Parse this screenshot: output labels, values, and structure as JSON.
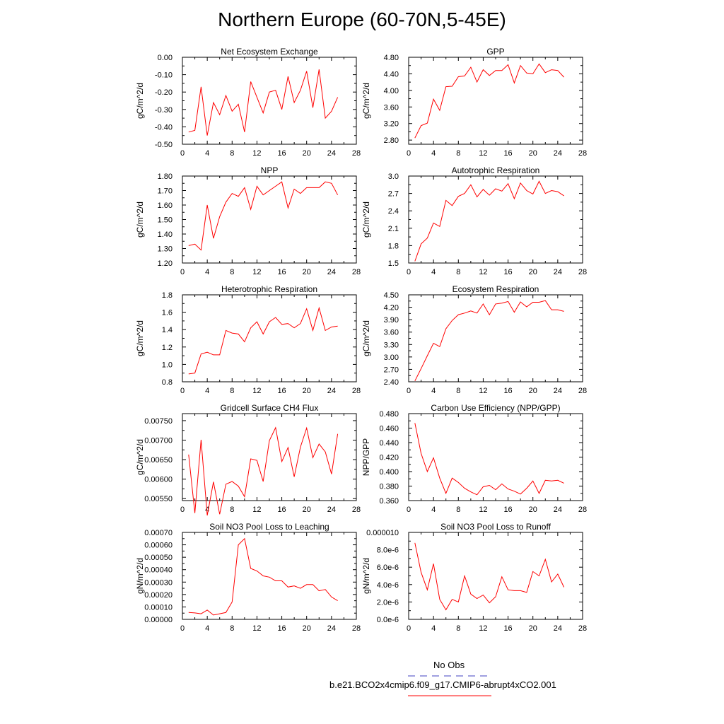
{
  "title": "Northern Europe (60-70N,5-45E)",
  "colors": {
    "series": "#ff0000",
    "obs": "#4040c0",
    "axis": "#000000"
  },
  "legend": {
    "obs_label": "No Obs",
    "case_label": "b.e21.BCO2x4cmip6.f09_g17.CMIP6-abrupt4xCO2.001"
  },
  "chart_data": [
    {
      "type": "line",
      "title": "Net Ecosystem Exchange",
      "ylabel": "gC/m^2/d",
      "xlim": [
        0,
        28
      ],
      "xticks": [
        0,
        4,
        8,
        12,
        16,
        20,
        24,
        28
      ],
      "ylim": [
        -0.5,
        0.0
      ],
      "yticks": [
        -0.5,
        -0.4,
        -0.3,
        -0.2,
        -0.1,
        0.0
      ],
      "yticklabels": [
        "-0.50",
        "-0.40",
        "-0.30",
        "-0.20",
        "-0.10",
        "0.00"
      ],
      "x": [
        1,
        2,
        3,
        4,
        5,
        6,
        7,
        8,
        9,
        10,
        11,
        12,
        13,
        14,
        15,
        16,
        17,
        18,
        19,
        20,
        21,
        22,
        23,
        24,
        25
      ],
      "y": [
        -0.43,
        -0.42,
        -0.17,
        -0.45,
        -0.26,
        -0.33,
        -0.22,
        -0.31,
        -0.27,
        -0.43,
        -0.14,
        -0.23,
        -0.32,
        -0.2,
        -0.19,
        -0.3,
        -0.11,
        -0.26,
        -0.19,
        -0.08,
        -0.29,
        -0.07,
        -0.35,
        -0.31,
        -0.23
      ]
    },
    {
      "type": "line",
      "title": "GPP",
      "ylabel": "gC/m^2/d",
      "xlim": [
        0,
        28
      ],
      "xticks": [
        0,
        4,
        8,
        12,
        16,
        20,
        24,
        28
      ],
      "ylim": [
        2.7,
        4.8
      ],
      "yticks": [
        2.8,
        3.2,
        3.6,
        4.0,
        4.4,
        4.8
      ],
      "yticklabels": [
        "2.80",
        "3.20",
        "3.60",
        "4.00",
        "4.40",
        "4.80"
      ],
      "x": [
        1,
        2,
        3,
        4,
        5,
        6,
        7,
        8,
        9,
        10,
        11,
        12,
        13,
        14,
        15,
        16,
        17,
        18,
        19,
        20,
        21,
        22,
        23,
        24,
        25
      ],
      "y": [
        2.85,
        3.15,
        3.21,
        3.79,
        3.52,
        4.09,
        4.1,
        4.33,
        4.35,
        4.56,
        4.2,
        4.5,
        4.36,
        4.48,
        4.48,
        4.62,
        4.18,
        4.6,
        4.42,
        4.4,
        4.64,
        4.43,
        4.5,
        4.48,
        4.32
      ]
    },
    {
      "type": "line",
      "title": "NPP",
      "ylabel": "gC/m^2/d",
      "xlim": [
        0,
        28
      ],
      "xticks": [
        0,
        4,
        8,
        12,
        16,
        20,
        24,
        28
      ],
      "ylim": [
        1.2,
        1.8
      ],
      "yticks": [
        1.2,
        1.3,
        1.4,
        1.5,
        1.6,
        1.7,
        1.8
      ],
      "yticklabels": [
        "1.20",
        "1.30",
        "1.40",
        "1.50",
        "1.60",
        "1.70",
        "1.80"
      ],
      "x": [
        1,
        2,
        3,
        4,
        5,
        6,
        7,
        8,
        9,
        10,
        11,
        12,
        13,
        14,
        15,
        16,
        17,
        18,
        19,
        20,
        21,
        22,
        23,
        24,
        25
      ],
      "y": [
        1.32,
        1.33,
        1.29,
        1.6,
        1.37,
        1.52,
        1.62,
        1.68,
        1.66,
        1.72,
        1.57,
        1.73,
        1.67,
        1.7,
        1.73,
        1.76,
        1.58,
        1.71,
        1.68,
        1.72,
        1.72,
        1.72,
        1.76,
        1.75,
        1.67
      ]
    },
    {
      "type": "line",
      "title": "Autotrophic Respiration",
      "ylabel": "gC/m^2/d",
      "xlim": [
        0,
        28
      ],
      "xticks": [
        0,
        4,
        8,
        12,
        16,
        20,
        24,
        28
      ],
      "ylim": [
        1.5,
        3.0
      ],
      "yticks": [
        1.5,
        1.8,
        2.1,
        2.4,
        2.7,
        3.0
      ],
      "yticklabels": [
        "1.5",
        "1.8",
        "2.1",
        "2.4",
        "2.7",
        "3.0"
      ],
      "x": [
        1,
        2,
        3,
        4,
        5,
        6,
        7,
        8,
        9,
        10,
        11,
        12,
        13,
        14,
        15,
        16,
        17,
        18,
        19,
        20,
        21,
        22,
        23,
        24,
        25
      ],
      "y": [
        1.53,
        1.83,
        1.93,
        2.19,
        2.13,
        2.58,
        2.49,
        2.65,
        2.7,
        2.85,
        2.64,
        2.77,
        2.67,
        2.78,
        2.74,
        2.87,
        2.61,
        2.88,
        2.75,
        2.69,
        2.91,
        2.7,
        2.75,
        2.73,
        2.66
      ]
    },
    {
      "type": "line",
      "title": "Heterotrophic Respiration",
      "ylabel": "gC/m^2/d",
      "xlim": [
        0,
        28
      ],
      "xticks": [
        0,
        4,
        8,
        12,
        16,
        20,
        24,
        28
      ],
      "ylim": [
        0.8,
        1.8
      ],
      "yticks": [
        0.8,
        1.0,
        1.2,
        1.4,
        1.6,
        1.8
      ],
      "yticklabels": [
        "0.8",
        "1.0",
        "1.2",
        "1.4",
        "1.6",
        "1.8"
      ],
      "x": [
        1,
        2,
        3,
        4,
        5,
        6,
        7,
        8,
        9,
        10,
        11,
        12,
        13,
        14,
        15,
        16,
        17,
        18,
        19,
        20,
        21,
        22,
        23,
        24,
        25
      ],
      "y": [
        0.89,
        0.9,
        1.12,
        1.14,
        1.11,
        1.11,
        1.39,
        1.36,
        1.35,
        1.26,
        1.42,
        1.49,
        1.35,
        1.49,
        1.54,
        1.46,
        1.47,
        1.42,
        1.47,
        1.64,
        1.39,
        1.65,
        1.39,
        1.43,
        1.44
      ]
    },
    {
      "type": "line",
      "title": "Ecosystem Respiration",
      "ylabel": "gC/m^2/d",
      "xlim": [
        0,
        28
      ],
      "xticks": [
        0,
        4,
        8,
        12,
        16,
        20,
        24,
        28
      ],
      "ylim": [
        2.4,
        4.5
      ],
      "yticks": [
        2.4,
        2.7,
        3.0,
        3.3,
        3.6,
        3.9,
        4.2,
        4.5
      ],
      "yticklabels": [
        "2.40",
        "2.70",
        "3.00",
        "3.30",
        "3.60",
        "3.90",
        "4.20",
        "4.50"
      ],
      "x": [
        1,
        2,
        3,
        4,
        5,
        6,
        7,
        8,
        9,
        10,
        11,
        12,
        13,
        14,
        15,
        16,
        17,
        18,
        19,
        20,
        21,
        22,
        23,
        24,
        25
      ],
      "y": [
        2.42,
        2.72,
        3.03,
        3.33,
        3.25,
        3.68,
        3.88,
        4.02,
        4.06,
        4.11,
        4.06,
        4.28,
        4.02,
        4.28,
        4.3,
        4.34,
        4.08,
        4.33,
        4.21,
        4.32,
        4.32,
        4.36,
        4.14,
        4.14,
        4.1
      ]
    },
    {
      "type": "line",
      "title": "Gridcell Surface CH4 Flux",
      "ylabel": "gC/m^2/d",
      "xlim": [
        0,
        28
      ],
      "xticks": [
        0,
        4,
        8,
        12,
        16,
        20,
        24,
        28
      ],
      "ylim": [
        0.00545,
        0.00768
      ],
      "yticks": [
        0.0055,
        0.006,
        0.0065,
        0.007,
        0.0075
      ],
      "yticklabels": [
        "0.00550",
        "0.00600",
        "0.00650",
        "0.00700",
        "0.00750"
      ],
      "x": [
        1,
        2,
        3,
        4,
        5,
        6,
        7,
        8,
        9,
        10,
        11,
        12,
        13,
        14,
        15,
        16,
        17,
        18,
        19,
        20,
        21,
        22,
        23,
        24,
        25
      ],
      "y": [
        0.00663,
        0.00513,
        0.00701,
        0.00507,
        0.00593,
        0.0051,
        0.00587,
        0.00594,
        0.00582,
        0.00555,
        0.00652,
        0.00648,
        0.00594,
        0.00699,
        0.00732,
        0.00645,
        0.00681,
        0.00606,
        0.00682,
        0.00731,
        0.00655,
        0.0069,
        0.0067,
        0.00613,
        0.00716
      ]
    },
    {
      "type": "line",
      "title": "Carbon Use Efficiency (NPP/GPP)",
      "ylabel": "NPP/GPP",
      "xlim": [
        0,
        28
      ],
      "xticks": [
        0,
        4,
        8,
        12,
        16,
        20,
        24,
        28
      ],
      "ylim": [
        0.36,
        0.48
      ],
      "yticks": [
        0.36,
        0.38,
        0.4,
        0.42,
        0.44,
        0.46,
        0.48
      ],
      "yticklabels": [
        "0.360",
        "0.380",
        "0.400",
        "0.420",
        "0.440",
        "0.460",
        "0.480"
      ],
      "x": [
        1,
        2,
        3,
        4,
        5,
        6,
        7,
        8,
        9,
        10,
        11,
        12,
        13,
        14,
        15,
        16,
        17,
        18,
        19,
        20,
        21,
        22,
        23,
        24,
        25
      ],
      "y": [
        0.467,
        0.425,
        0.4,
        0.419,
        0.391,
        0.37,
        0.391,
        0.385,
        0.377,
        0.372,
        0.368,
        0.379,
        0.381,
        0.375,
        0.383,
        0.376,
        0.373,
        0.369,
        0.377,
        0.387,
        0.37,
        0.388,
        0.387,
        0.388,
        0.384
      ]
    },
    {
      "type": "line",
      "title": "Soil NO3 Pool Loss to Leaching",
      "ylabel": "gN/m^2/d",
      "xlim": [
        0,
        28
      ],
      "xticks": [
        0,
        4,
        8,
        12,
        16,
        20,
        24,
        28
      ],
      "ylim": [
        0.0,
        0.0007
      ],
      "yticks": [
        0,
        0.0001,
        0.0002,
        0.0003,
        0.0004,
        0.0005,
        0.0006,
        0.0007
      ],
      "yticklabels": [
        "0.00000",
        "0.00010",
        "0.00020",
        "0.00030",
        "0.00040",
        "0.00050",
        "0.00060",
        "0.00070"
      ],
      "x": [
        1,
        2,
        3,
        4,
        5,
        6,
        7,
        8,
        9,
        10,
        11,
        12,
        13,
        14,
        15,
        16,
        17,
        18,
        19,
        20,
        21,
        22,
        23,
        24,
        25
      ],
      "y": [
        5.5e-05,
        5.2e-05,
        4.5e-05,
        7.5e-05,
        3.5e-05,
        4.5e-05,
        5.5e-05,
        0.00014,
        0.0006,
        0.00065,
        0.00041,
        0.00039,
        0.00035,
        0.00034,
        0.00031,
        0.00031,
        0.00026,
        0.00027,
        0.00025,
        0.00028,
        0.00028,
        0.00023,
        0.00024,
        0.00018,
        0.00015
      ]
    },
    {
      "type": "line",
      "title": "Soil NO3 Pool Loss to Runoff",
      "ylabel": "gN/m^2/d",
      "xlim": [
        0,
        28
      ],
      "xticks": [
        0,
        4,
        8,
        12,
        16,
        20,
        24,
        28
      ],
      "ylim": [
        0.0,
        1e-05
      ],
      "yticks": [
        0,
        2e-06,
        4e-06,
        6e-06,
        8e-06,
        1e-05
      ],
      "yticklabels": [
        "0.0e-6",
        "2.0e-6",
        "4.0e-6",
        "6.0e-6",
        "8.0e-6",
        "0.000010"
      ],
      "x": [
        1,
        2,
        3,
        4,
        5,
        6,
        7,
        8,
        9,
        10,
        11,
        12,
        13,
        14,
        15,
        16,
        17,
        18,
        19,
        20,
        21,
        22,
        23,
        24,
        25
      ],
      "y": [
        8.8e-06,
        5.4e-06,
        3.4e-06,
        6.4e-06,
        2.3e-06,
        1.1e-06,
        2.3e-06,
        2e-06,
        5e-06,
        2.9e-06,
        2.4e-06,
        2.8e-06,
        1.9e-06,
        2.6e-06,
        4.9e-06,
        3.4e-06,
        3.3e-06,
        3.3e-06,
        3.1e-06,
        5.5e-06,
        5e-06,
        6.9e-06,
        4.3e-06,
        5.2e-06,
        3.7e-06
      ]
    }
  ]
}
